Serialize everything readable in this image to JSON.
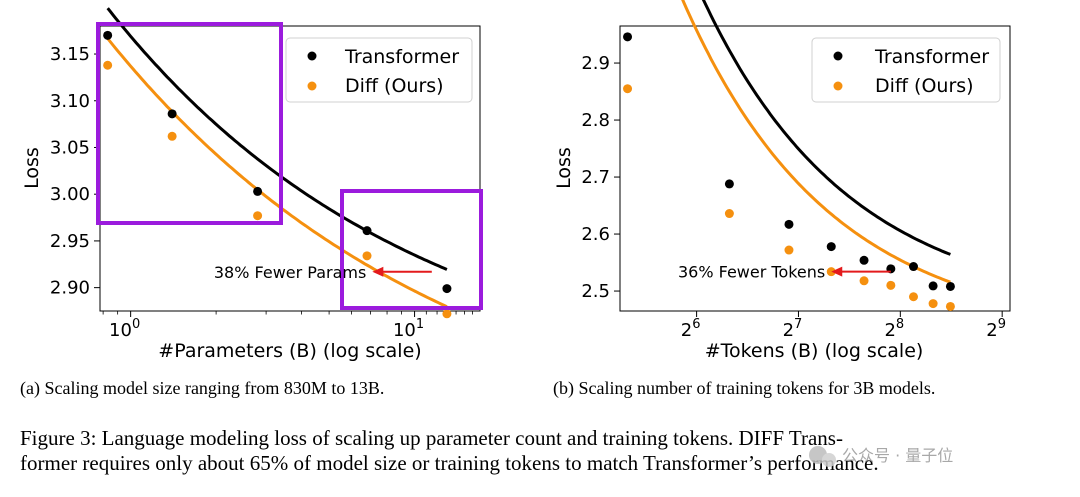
{
  "chart_data": [
    {
      "type": "scatter",
      "title": "",
      "xlabel": "#Parameters (B) (log scale)",
      "ylabel": "Loss",
      "xscale": "log10",
      "xlim": [
        0.78,
        17
      ],
      "ylim": [
        2.875,
        3.18
      ],
      "x_ticks": [
        {
          "value": 1,
          "base": "10",
          "exp": "0"
        },
        {
          "value": 10,
          "base": "10",
          "exp": "1"
        }
      ],
      "y_ticks": [
        2.9,
        2.95,
        3.0,
        3.05,
        3.1,
        3.15
      ],
      "y_tick_labels": [
        "2.90",
        "2.95",
        "3.00",
        "3.05",
        "3.10",
        "3.15"
      ],
      "series": [
        {
          "name": "Transformer",
          "color": "#000000",
          "x": [
            0.83,
            1.4,
            2.8,
            6.8,
            13
          ],
          "y": [
            3.17,
            3.086,
            3.003,
            2.961,
            2.899
          ],
          "fit": {
            "a": 2.78,
            "b": 0.389,
            "c": 0.4
          }
        },
        {
          "name": "Diff (Ours)",
          "color": "#f5900f",
          "x": [
            0.83,
            1.4,
            2.8,
            6.8,
            13
          ],
          "y": [
            3.138,
            3.062,
            2.977,
            2.934,
            2.872
          ],
          "fit": {
            "a": 2.71,
            "b": 0.427,
            "c": 0.36
          }
        }
      ],
      "annotation": {
        "text": "38% Fewer Params",
        "arrow_from": [
          11.5,
          2.917
        ],
        "arrow_to": [
          7.1,
          2.917
        ],
        "arrow_color": "#e31a1c"
      },
      "highlight_color": "#9b1bdd",
      "legend": {
        "position": "top-right",
        "entries": [
          "Transformer",
          "Diff (Ours)"
        ]
      },
      "caption": "(a) Scaling model size ranging from 830M to 13B."
    },
    {
      "type": "scatter",
      "title": "",
      "xlabel": "#Tokens (B) (log scale)",
      "ylabel": "Loss",
      "xscale": "log2",
      "xlim": [
        38,
        540
      ],
      "ylim": [
        2.465,
        2.965
      ],
      "x_ticks": [
        {
          "value": 64,
          "base": "2",
          "exp": "6"
        },
        {
          "value": 128,
          "base": "2",
          "exp": "7"
        },
        {
          "value": 256,
          "base": "2",
          "exp": "8"
        },
        {
          "value": 512,
          "base": "2",
          "exp": "9"
        }
      ],
      "y_ticks": [
        2.5,
        2.6,
        2.7,
        2.8,
        2.9
      ],
      "y_tick_labels": [
        "2.5",
        "2.6",
        "2.7",
        "2.8",
        "2.9"
      ],
      "series": [
        {
          "name": "Transformer",
          "color": "#000000",
          "x": [
            40,
            80,
            120,
            160,
            200,
            240,
            280,
            320,
            360
          ],
          "y": [
            2.946,
            2.688,
            2.617,
            2.578,
            2.554,
            2.539,
            2.543,
            2.509,
            2.508
          ],
          "fit": {
            "a": 2.462,
            "b": 0.92,
            "c": 1.0,
            "x0": 40
          }
        },
        {
          "name": "Diff (Ours)",
          "color": "#f5900f",
          "x": [
            40,
            80,
            120,
            160,
            200,
            240,
            280,
            320,
            360
          ],
          "y": [
            2.855,
            2.636,
            2.572,
            2.534,
            2.518,
            2.51,
            2.49,
            2.478,
            2.473
          ],
          "fit": {
            "a": 2.42,
            "b": 0.86,
            "c": 1.0,
            "x0": 40
          }
        }
      ],
      "annotation": {
        "text": "36% Fewer Tokens",
        "arrow_from": [
          240,
          2.534
        ],
        "arrow_to": [
          160,
          2.534
        ],
        "arrow_color": "#e31a1c"
      },
      "legend": {
        "position": "top-right",
        "entries": [
          "Transformer",
          "Diff (Ours)"
        ]
      },
      "caption": "(b) Scaling number of training tokens for 3B models."
    }
  ],
  "figure_caption": {
    "line1": "Figure 3: Language modeling loss of scaling up parameter count and training tokens. DIFF Trans-",
    "line2": "former requires only about 65% of model size or training tokens to match Transformer’s performance."
  },
  "watermark": "公众号 · 量子位"
}
